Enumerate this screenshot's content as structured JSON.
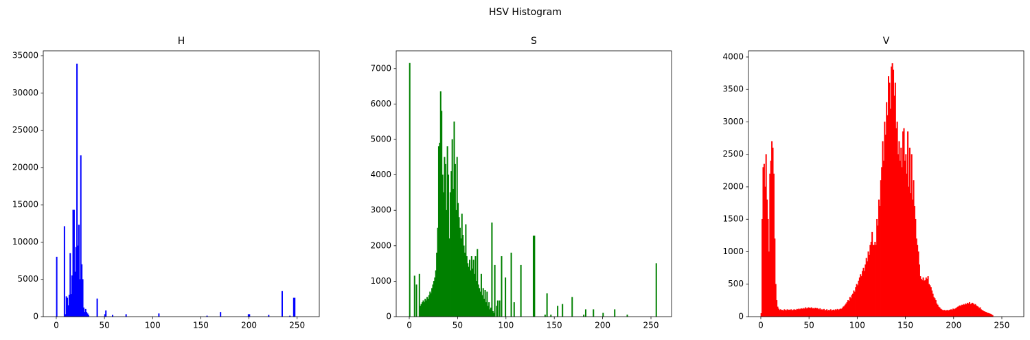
{
  "title": "HSV Histogram",
  "chart_data": [
    {
      "type": "bar",
      "title": "H",
      "color": "#0000ff",
      "x": [
        0,
        8,
        9,
        10,
        11,
        12,
        13,
        14,
        15,
        16,
        17,
        18,
        19,
        20,
        21,
        22,
        23,
        24,
        25,
        26,
        27,
        28,
        29,
        30,
        31,
        32,
        33,
        42,
        50,
        51,
        58,
        72,
        106,
        156,
        170,
        199,
        200,
        220,
        234,
        242,
        246,
        247
      ],
      "values": [
        8000,
        12100,
        300,
        2700,
        2500,
        1500,
        2900,
        8500,
        3000,
        5500,
        14300,
        14300,
        6000,
        9300,
        33900,
        9500,
        12300,
        5000,
        21600,
        7000,
        5000,
        1200,
        600,
        1000,
        600,
        400,
        200,
        2400,
        300,
        800,
        200,
        300,
        400,
        100,
        600,
        300,
        300,
        200,
        3400,
        100,
        2500,
        2500
      ],
      "xlim": [
        -13.5,
        273
      ],
      "ylim": [
        0,
        35650
      ],
      "xticks": [
        0,
        50,
        100,
        150,
        200,
        250
      ],
      "yticks": [
        0,
        5000,
        10000,
        15000,
        20000,
        25000,
        30000,
        35000
      ]
    },
    {
      "type": "bar",
      "title": "S",
      "color": "#008000",
      "x": [
        0,
        5,
        7,
        10,
        11,
        12,
        13,
        14,
        15,
        16,
        17,
        18,
        19,
        20,
        21,
        22,
        23,
        24,
        25,
        26,
        27,
        28,
        29,
        30,
        31,
        32,
        33,
        34,
        35,
        36,
        37,
        38,
        39,
        40,
        41,
        42,
        43,
        44,
        45,
        46,
        47,
        48,
        49,
        50,
        51,
        52,
        53,
        54,
        55,
        56,
        57,
        58,
        59,
        60,
        61,
        62,
        63,
        64,
        65,
        66,
        67,
        68,
        69,
        70,
        71,
        72,
        73,
        74,
        75,
        76,
        77,
        78,
        79,
        80,
        81,
        82,
        83,
        84,
        85,
        86,
        87,
        88,
        90,
        91,
        93,
        95,
        99,
        105,
        108,
        115,
        128,
        129,
        140,
        142,
        146,
        153,
        158,
        168,
        180,
        182,
        190,
        200,
        212,
        225,
        255
      ],
      "values": [
        7150,
        1150,
        900,
        1200,
        300,
        350,
        400,
        450,
        400,
        500,
        450,
        550,
        500,
        600,
        700,
        650,
        800,
        900,
        1000,
        1100,
        1300,
        1800,
        2500,
        4800,
        4900,
        6350,
        5800,
        4000,
        3500,
        4500,
        4300,
        3000,
        4800,
        4000,
        2200,
        3500,
        4100,
        5000,
        3600,
        5500,
        4300,
        3000,
        4500,
        3200,
        2800,
        2500,
        2200,
        2900,
        2300,
        2000,
        1800,
        2600,
        1700,
        1500,
        1400,
        1600,
        1300,
        1700,
        1350,
        1600,
        1200,
        1700,
        1000,
        1900,
        900,
        800,
        700,
        1200,
        600,
        800,
        500,
        750,
        400,
        700,
        300,
        400,
        200,
        250,
        2650,
        150,
        100,
        1450,
        300,
        450,
        450,
        1700,
        1100,
        1800,
        400,
        1450,
        2280,
        2280,
        50,
        650,
        50,
        300,
        350,
        550,
        50,
        200,
        200,
        100,
        200,
        50,
        1500
      ],
      "xlim": [
        -13.5,
        271.3
      ],
      "ylim": [
        0,
        7500
      ],
      "xticks": [
        0,
        50,
        100,
        150,
        200,
        250
      ],
      "yticks": [
        0,
        1000,
        2000,
        3000,
        4000,
        5000,
        6000,
        7000
      ]
    },
    {
      "type": "bar",
      "title": "V",
      "color": "#ff0000",
      "x": [
        0,
        1,
        2,
        3,
        4,
        5,
        6,
        7,
        8,
        9,
        10,
        11,
        12,
        13,
        14,
        15,
        16,
        17,
        18,
        19,
        20,
        21,
        22,
        23,
        24,
        25,
        26,
        27,
        28,
        29,
        30,
        31,
        32,
        33,
        34,
        35,
        36,
        37,
        38,
        39,
        40,
        41,
        42,
        43,
        44,
        45,
        46,
        47,
        48,
        49,
        50,
        51,
        52,
        53,
        54,
        55,
        56,
        57,
        58,
        59,
        60,
        61,
        62,
        63,
        64,
        65,
        66,
        67,
        68,
        69,
        70,
        71,
        72,
        73,
        74,
        75,
        76,
        77,
        78,
        79,
        80,
        81,
        82,
        83,
        84,
        85,
        86,
        87,
        88,
        89,
        90,
        91,
        92,
        93,
        94,
        95,
        96,
        97,
        98,
        99,
        100,
        101,
        102,
        103,
        104,
        105,
        106,
        107,
        108,
        109,
        110,
        111,
        112,
        113,
        114,
        115,
        116,
        117,
        118,
        119,
        120,
        121,
        122,
        123,
        124,
        125,
        126,
        127,
        128,
        129,
        130,
        131,
        132,
        133,
        134,
        135,
        136,
        137,
        138,
        139,
        140,
        141,
        142,
        143,
        144,
        145,
        146,
        147,
        148,
        149,
        150,
        151,
        152,
        153,
        154,
        155,
        156,
        157,
        158,
        159,
        160,
        161,
        162,
        163,
        164,
        165,
        166,
        167,
        168,
        169,
        170,
        171,
        172,
        173,
        174,
        175,
        176,
        177,
        178,
        179,
        180,
        181,
        182,
        183,
        184,
        185,
        186,
        187,
        188,
        189,
        190,
        191,
        192,
        193,
        194,
        195,
        196,
        197,
        198,
        199,
        200,
        201,
        202,
        203,
        204,
        205,
        206,
        207,
        208,
        209,
        210,
        211,
        212,
        213,
        214,
        215,
        216,
        217,
        218,
        219,
        220,
        221,
        222,
        223,
        224,
        225,
        226,
        227,
        228,
        229,
        230,
        231,
        232,
        233,
        234,
        235,
        236,
        237,
        238,
        239,
        240
      ],
      "values": [
        50,
        1500,
        2300,
        2350,
        2000,
        2500,
        1800,
        1500,
        1000,
        2200,
        2400,
        2700,
        2600,
        2200,
        1200,
        500,
        250,
        150,
        120,
        100,
        110,
        100,
        100,
        90,
        110,
        100,
        95,
        110,
        100,
        105,
        100,
        110,
        95,
        100,
        110,
        105,
        100,
        115,
        110,
        120,
        110,
        120,
        125,
        115,
        130,
        120,
        140,
        125,
        130,
        140,
        135,
        130,
        140,
        125,
        130,
        120,
        135,
        125,
        130,
        120,
        110,
        125,
        105,
        110,
        100,
        115,
        95,
        100,
        110,
        90,
        100,
        95,
        110,
        90,
        100,
        105,
        95,
        110,
        100,
        115,
        100,
        110,
        120,
        115,
        130,
        150,
        160,
        180,
        200,
        220,
        250,
        240,
        300,
        280,
        330,
        350,
        400,
        380,
        450,
        500,
        480,
        550,
        600,
        650,
        620,
        700,
        750,
        700,
        800,
        900,
        850,
        1000,
        950,
        1100,
        1150,
        1300,
        1100,
        1100,
        1150,
        1100,
        1500,
        1400,
        1800,
        1700,
        2100,
        2300,
        2700,
        2400,
        3000,
        2800,
        3300,
        3100,
        3700,
        3600,
        3200,
        3850,
        3900,
        3800,
        3400,
        3600,
        2900,
        3000,
        2500,
        2700,
        2400,
        2600,
        2300,
        2850,
        2900,
        2400,
        2500,
        2200,
        2850,
        2000,
        2600,
        1900,
        2500,
        1800,
        2100,
        1700,
        1500,
        1200,
        1100,
        1000,
        800,
        620,
        580,
        560,
        600,
        550,
        560,
        600,
        580,
        620,
        500,
        480,
        450,
        400,
        350,
        300,
        280,
        250,
        200,
        180,
        150,
        140,
        120,
        110,
        100,
        95,
        100,
        90,
        95,
        100,
        90,
        100,
        105,
        110,
        100,
        120,
        110,
        120,
        130,
        140,
        150,
        160,
        170,
        160,
        180,
        175,
        190,
        180,
        200,
        190,
        210,
        200,
        220,
        190,
        200,
        210,
        200,
        180,
        190,
        170,
        160,
        150,
        130,
        140,
        110,
        100,
        90,
        80,
        75,
        70,
        60,
        55,
        50,
        45,
        40,
        30,
        20
      ],
      "xlim": [
        -12.8,
        272.8
      ],
      "ylim": [
        0,
        4095
      ],
      "xticks": [
        0,
        50,
        100,
        150,
        200,
        250
      ],
      "yticks": [
        0,
        500,
        1000,
        1500,
        2000,
        2500,
        3000,
        3500,
        4000
      ]
    }
  ]
}
